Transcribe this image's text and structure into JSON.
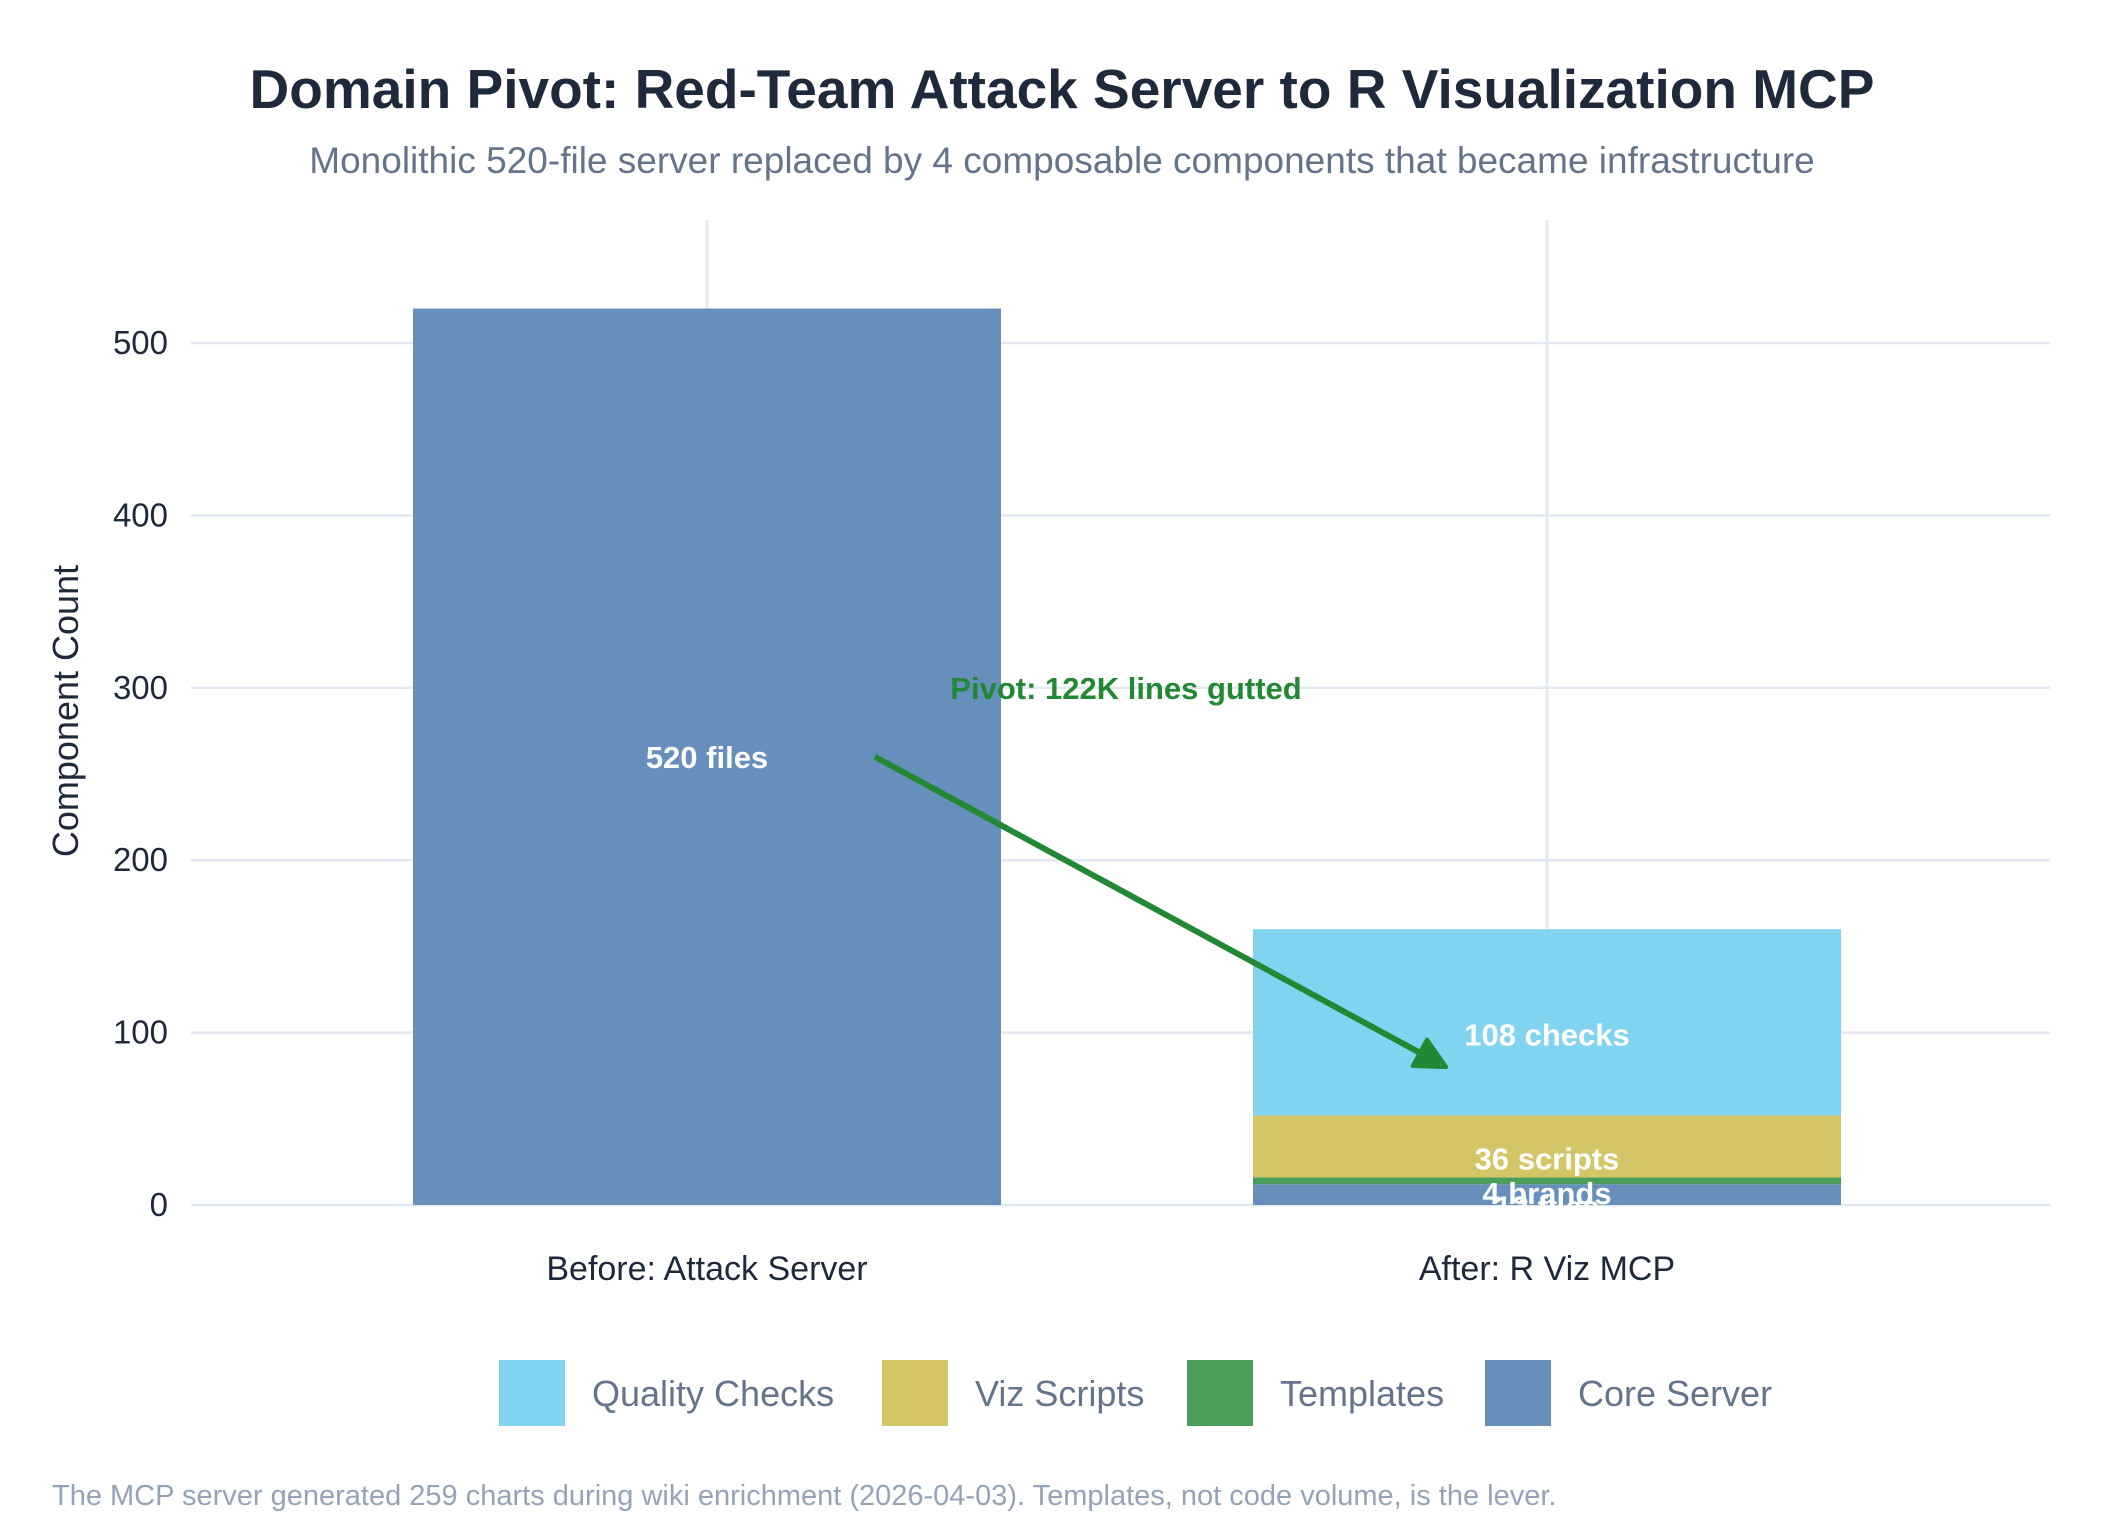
{
  "chart_data": {
    "type": "bar",
    "stacked": true,
    "title": "Domain Pivot: Red-Team Attack Server to R Visualization MCP",
    "subtitle": "Monolithic 520-file server replaced by 4 composable components that became infrastructure",
    "xlabel": "",
    "ylabel": "Component Count",
    "ylim": [
      0,
      565
    ],
    "yticks": [
      0,
      100,
      200,
      300,
      400,
      500
    ],
    "grid": true,
    "categories": [
      "Before: Attack Server",
      "After: R Viz MCP"
    ],
    "series": [
      {
        "name": "Core Server",
        "color": "#6690bb",
        "values": [
          520,
          12
        ],
        "labels": [
          "520 files",
          "12 files"
        ]
      },
      {
        "name": "Templates",
        "color": "#4a9e5a",
        "values": [
          0,
          4
        ],
        "labels": [
          "",
          "4 brands"
        ]
      },
      {
        "name": "Viz Scripts",
        "color": "#d4c666",
        "values": [
          0,
          36
        ],
        "labels": [
          "",
          "36 scripts"
        ]
      },
      {
        "name": "Quality Checks",
        "color": "#81d4f0",
        "values": [
          0,
          108
        ],
        "labels": [
          "",
          "108 checks"
        ]
      }
    ],
    "legend": {
      "position": "bottom",
      "order": [
        "Quality Checks",
        "Viz Scripts",
        "Templates",
        "Core Server"
      ]
    },
    "annotations": [
      {
        "type": "arrow",
        "text": "Pivot: 122K lines gutted",
        "color": "#228833",
        "from": {
          "category_index": 0,
          "category_offset": 0.2,
          "y": 260
        },
        "to": {
          "category_index": 1,
          "category_offset": -0.12,
          "y": 80
        },
        "text_at": {
          "category_index": 0.5,
          "y": 300
        }
      }
    ],
    "caption": "The MCP server generated 259 charts during wiki enrichment (2026-04-03). Templates, not code volume, is the lever."
  }
}
